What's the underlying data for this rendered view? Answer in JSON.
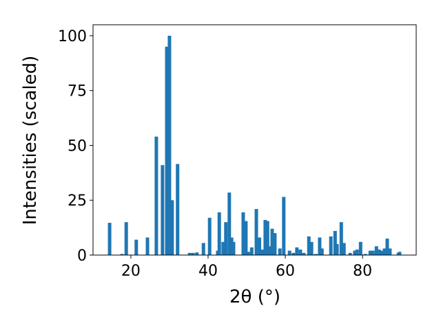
{
  "chart_data": {
    "type": "bar",
    "xlabel": "2θ (°)",
    "ylabel": "Intensities (scaled)",
    "color": "#1f77b4",
    "x": [
      14.5,
      17.7,
      18.8,
      21.4,
      24.3,
      26.6,
      28.2,
      29.3,
      30.0,
      30.7,
      32.1,
      35.2,
      36.1,
      37.1,
      38.8,
      40.4,
      42.5,
      42.9,
      43.9,
      44.6,
      45.5,
      46.1,
      46.6,
      49.1,
      49.8,
      50.4,
      51.3,
      52.5,
      53.3,
      54.1,
      54.8,
      55.4,
      55.9,
      56.6,
      57.3,
      58.6,
      59.6,
      61.1,
      62.1,
      63.0,
      63.9,
      64.8,
      66.1,
      66.8,
      67.9,
      68.9,
      69.5,
      71.8,
      72.9,
      73.4,
      74.5,
      75.2,
      76.8,
      78.0,
      78.6,
      79.5,
      80.7,
      82.0,
      82.7,
      83.6,
      84.3,
      85.0,
      85.7,
      86.4,
      87.1,
      89.3,
      89.6
    ],
    "values": [
      14.7,
      0.5,
      15,
      7,
      8,
      54,
      41,
      95,
      100,
      25,
      41.5,
      1,
      1,
      1.2,
      5.5,
      17,
      2,
      19.5,
      6,
      15,
      28.5,
      8,
      6,
      19.5,
      15.5,
      1.5,
      3.5,
      21,
      8,
      2.5,
      16,
      15.5,
      4,
      12,
      10,
      3,
      26.5,
      2,
      1,
      3.5,
      2.5,
      1,
      8.5,
      6,
      0.5,
      8,
      3,
      8.5,
      11,
      5,
      15,
      5.5,
      1,
      2,
      2.5,
      6,
      0.5,
      2,
      2,
      4,
      2.5,
      2,
      3,
      7.5,
      3,
      1,
      1.5
    ],
    "xlim": [
      10.2,
      93.9
    ],
    "xticks": [
      20,
      40,
      60,
      80
    ],
    "ylim": [
      0,
      105
    ],
    "yticks": [
      0,
      25,
      50,
      75,
      100
    ]
  }
}
